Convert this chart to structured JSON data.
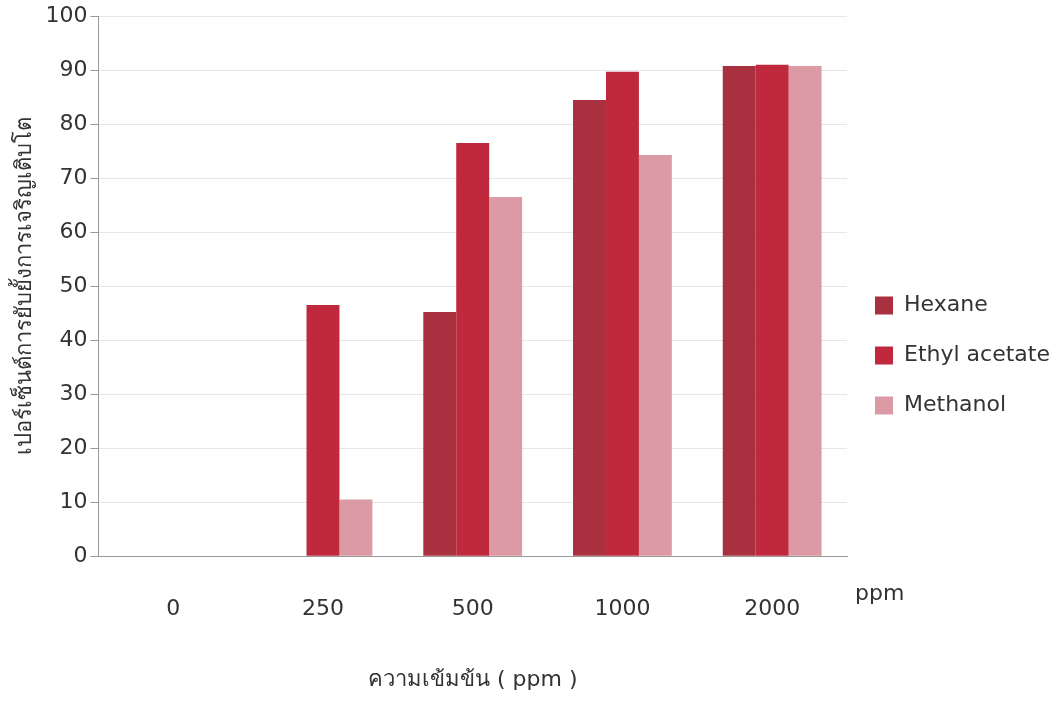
{
  "chart_data": {
    "type": "bar",
    "categories": [
      "0",
      "250",
      "500",
      "1000",
      "2000"
    ],
    "series": [
      {
        "name": "Hexane",
        "color": "#a8303f",
        "values": [
          0,
          0,
          45.2,
          84.5,
          90.8
        ]
      },
      {
        "name": "Ethyl acetate",
        "color": "#c0283e",
        "values": [
          0,
          46.5,
          76.5,
          89.7,
          91
        ]
      },
      {
        "name": "Methanol",
        "color": "#dc9aa5",
        "values": [
          0,
          10.5,
          66.5,
          74.3,
          90.8
        ]
      }
    ],
    "ylim": [
      0,
      100
    ],
    "yticks": [
      0,
      10,
      20,
      30,
      40,
      50,
      60,
      70,
      80,
      90,
      100
    ],
    "ylabel": "เปอร์เซ็นต์การยับยั้งการเจริญเติบโต",
    "xlabel": "ความเข้มข้น ( ppm )",
    "annotations": [
      "ppm"
    ],
    "grid": "y",
    "legend": "right"
  }
}
